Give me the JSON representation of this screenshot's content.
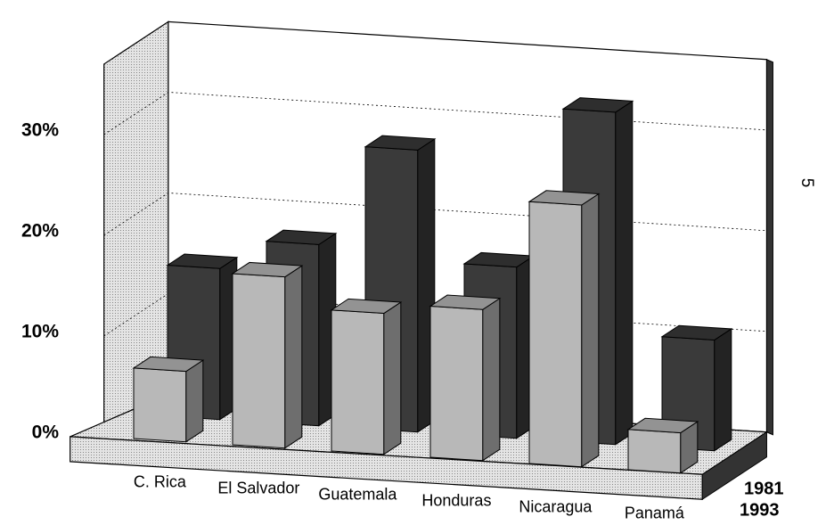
{
  "chart_data": {
    "type": "bar3d",
    "categories": [
      "C. Rica",
      "El Salvador",
      "Guatemala",
      "Honduras",
      "Nicaragua",
      "Panamá"
    ],
    "series": [
      {
        "name": "1981",
        "color": "#3a3a3a",
        "values": [
          15,
          18,
          28,
          17,
          33,
          11
        ]
      },
      {
        "name": "1993",
        "color": "#b8b8b8",
        "values": [
          7,
          17,
          14,
          15,
          26,
          4
        ]
      }
    ],
    "ylim": [
      0,
      37
    ],
    "yticks": [
      {
        "value": 0,
        "label": "0%"
      },
      {
        "value": 10,
        "label": "10%"
      },
      {
        "value": 20,
        "label": "20%"
      },
      {
        "value": 30,
        "label": "30%"
      }
    ],
    "grid": true,
    "page_number": "5"
  }
}
